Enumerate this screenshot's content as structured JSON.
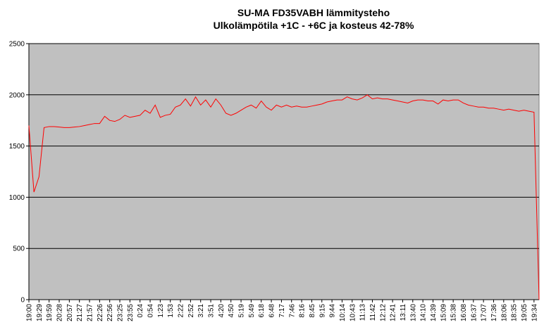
{
  "chart_data": {
    "type": "line",
    "title": "SU-MA FD35VABH lämmitysteho",
    "subtitle": "Ulkolämpötila  +1C - +6C ja kosteus 42-78%",
    "categories": [
      "19:00",
      null,
      "19:29",
      null,
      "19:59",
      null,
      "20:28",
      null,
      "20:57",
      null,
      "21:27",
      null,
      "21:57",
      null,
      "22:26",
      null,
      "22:56",
      null,
      "23:25",
      null,
      "23:55",
      null,
      "0:24",
      null,
      "0:54",
      null,
      "1:23",
      null,
      "1:53",
      null,
      "2:22",
      null,
      "2:52",
      null,
      "3:21",
      null,
      "3:51",
      null,
      "4:20",
      null,
      "4:50",
      null,
      "5:19",
      null,
      "5:49",
      null,
      "6:18",
      null,
      "6:48",
      null,
      "7:17",
      null,
      "7:46",
      null,
      "8:16",
      null,
      "8:45",
      null,
      "9:15",
      null,
      "9:44",
      null,
      "10:14",
      null,
      "10:43",
      null,
      "11:13",
      null,
      "11:42",
      null,
      "12:12",
      null,
      "12:41",
      null,
      "13:11",
      null,
      "13:40",
      null,
      "14:10",
      null,
      "14:39",
      null,
      "15:09",
      null,
      "15:38",
      null,
      "16:08",
      null,
      "16:37",
      null,
      "17:07",
      null,
      "17:36",
      null,
      "18:06",
      null,
      "18:35",
      null,
      "19:05",
      null,
      "19:34",
      null
    ],
    "series": [
      {
        "name": "lämmitysteho",
        "color": "#ff0000",
        "values": [
          1700,
          1050,
          1200,
          1680,
          1690,
          1690,
          1685,
          1680,
          1680,
          1685,
          1690,
          1700,
          1710,
          1720,
          1720,
          1790,
          1750,
          1740,
          1760,
          1800,
          1780,
          1790,
          1800,
          1850,
          1820,
          1900,
          1780,
          1800,
          1810,
          1880,
          1900,
          1960,
          1890,
          1980,
          1900,
          1950,
          1880,
          1960,
          1900,
          1820,
          1800,
          1820,
          1850,
          1880,
          1900,
          1870,
          1940,
          1880,
          1850,
          1900,
          1880,
          1900,
          1880,
          1890,
          1880,
          1880,
          1890,
          1900,
          1910,
          1930,
          1940,
          1950,
          1950,
          1980,
          1960,
          1950,
          1970,
          2000,
          1960,
          1970,
          1960,
          1960,
          1950,
          1940,
          1930,
          1920,
          1940,
          1950,
          1950,
          1940,
          1940,
          1910,
          1950,
          1940,
          1950,
          1950,
          1920,
          1900,
          1890,
          1880,
          1880,
          1870,
          1870,
          1860,
          1850,
          1860,
          1850,
          1840,
          1850,
          1840,
          1830,
          0
        ]
      }
    ],
    "ylim": [
      0,
      2500
    ],
    "yticks": [
      0,
      500,
      1000,
      1500,
      2000,
      2500
    ],
    "grid": true,
    "plot_background": "#c0c0c0"
  }
}
